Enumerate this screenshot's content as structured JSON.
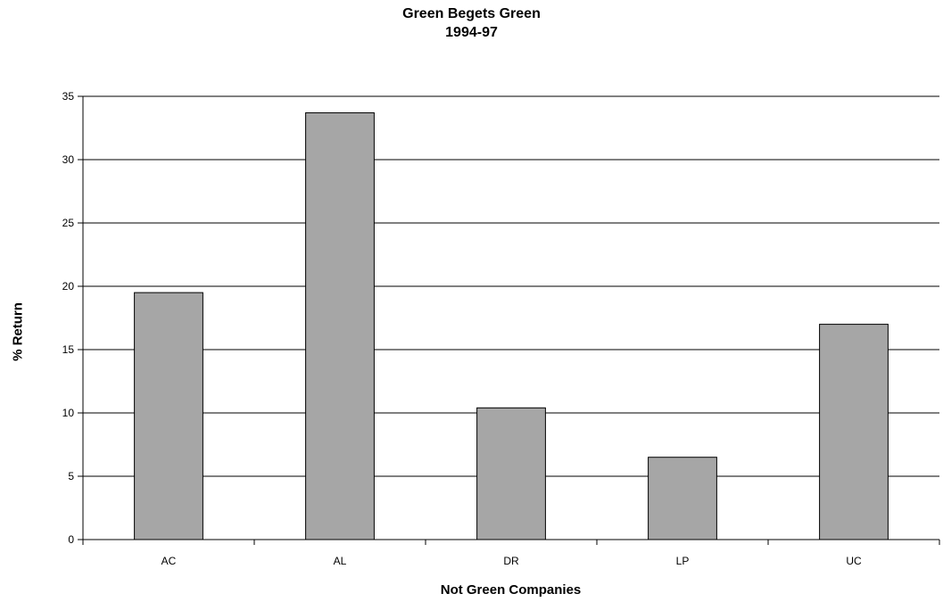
{
  "chart_data": {
    "type": "bar",
    "title": "Green Begets Green",
    "subtitle": "1994-97",
    "xlabel": "Not Green Companies",
    "ylabel": "% Return",
    "categories": [
      "AC",
      "AL",
      "DR",
      "LP",
      "UC"
    ],
    "values": [
      19.5,
      33.7,
      10.4,
      6.5,
      17.0
    ],
    "ylim": [
      0,
      35
    ],
    "yticks": [
      0,
      5,
      10,
      15,
      20,
      25,
      30,
      35
    ],
    "grid": true,
    "legend": "none",
    "colors": {
      "bar": "#a6a6a6",
      "bar_stroke": "#000000",
      "grid": "#000000"
    }
  }
}
